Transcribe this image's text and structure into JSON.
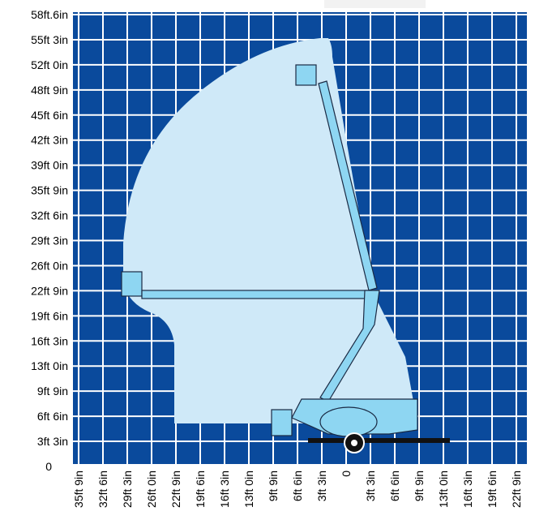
{
  "y_labels": [
    "58ft.6in",
    "55ft 3in",
    "52ft 0in",
    "48ft 9in",
    "45ft 6in",
    "42ft 3in",
    "39ft 0in",
    "35ft 9in",
    "32ft 6in",
    "29ft 3in",
    "26ft 0in",
    "22ft 9in",
    "19ft 6in",
    "16ft 3in",
    "13ft 0in",
    "9ft 9in",
    "6ft 6in",
    "3ft 3in",
    "0"
  ],
  "x_labels": [
    "35ft 9in",
    "32ft 6in",
    "29ft 3in",
    "26ft 0in",
    "22ft 9in",
    "19ft 6in",
    "16ft 3in",
    "13ft 0in",
    "9ft 9in",
    "6ft 6in",
    "3ft 3in",
    "0",
    "3ft 3in",
    "6ft 6in",
    "9ft 9in",
    "13ft 0in",
    "16ft 3in",
    "19ft 6in",
    "22ft 9in"
  ]
}
